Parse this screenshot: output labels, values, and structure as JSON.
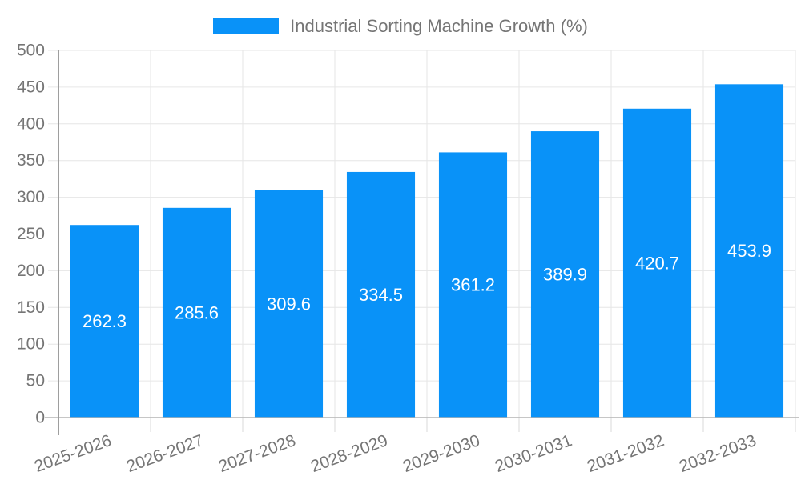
{
  "chart_data": {
    "type": "bar",
    "title": "Industrial Sorting Machine Growth (%)",
    "legend": [
      "Industrial Sorting Machine Growth (%)"
    ],
    "legend_position": "top",
    "categories": [
      "2025-2026",
      "2026-2027",
      "2027-2028",
      "2028-2029",
      "2029-2030",
      "2030-2031",
      "2031-2032",
      "2032-2033"
    ],
    "values": [
      262.3,
      285.6,
      309.6,
      334.5,
      361.2,
      389.9,
      420.7,
      453.9
    ],
    "xlabel": "",
    "ylabel": "",
    "ylim": [
      0,
      500
    ],
    "ytick_step": 50,
    "yticks": [
      0,
      50,
      100,
      150,
      200,
      250,
      300,
      350,
      400,
      450,
      500
    ],
    "grid": true,
    "x_label_rotation_deg": -20,
    "value_labels_inside_bars": true
  },
  "style": {
    "bar_color": "#0992f8",
    "value_label_color": "#ffffff",
    "axis_text_color": "#757575",
    "grid_color": "#e6e6e6",
    "yaxis_line_color": "#9e9e9e",
    "xaxis_line_color": "#b3b3b3",
    "tick_color": "#d9d9d9",
    "background_color": "#ffffff"
  }
}
